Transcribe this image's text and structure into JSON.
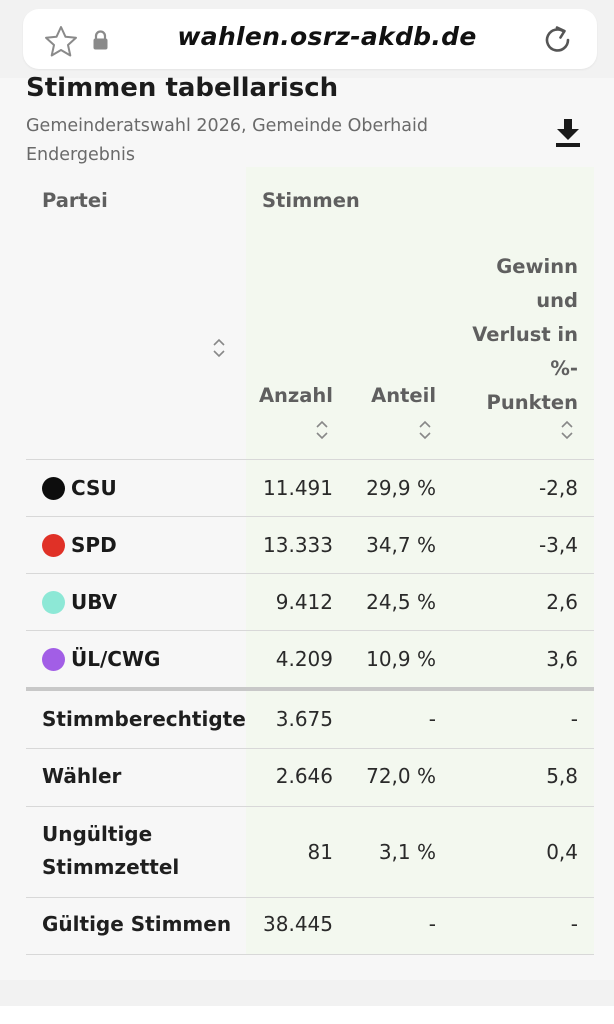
{
  "browser": {
    "url": "wahlen.osrz-akdb.de"
  },
  "page": {
    "title": "Stimmen tabellarisch",
    "subtitle_line1": "Gemeinderatswahl 2026, Gemeinde Oberhaid",
    "subtitle_line2": "Endergebnis"
  },
  "table": {
    "headers": {
      "partei": "Partei",
      "stimmen": "Stimmen",
      "anzahl": "Anzahl",
      "anteil": "Anteil",
      "gewinn_lines": [
        "Gewinn",
        "und",
        "Verlust in",
        "%-",
        "Punkten"
      ]
    },
    "parties": [
      {
        "name": "CSU",
        "color": "#0d0d0d",
        "anzahl": "11.491",
        "anteil": "29,9 %",
        "diff": "-2,8"
      },
      {
        "name": "SPD",
        "color": "#e03127",
        "anzahl": "13.333",
        "anteil": "34,7 %",
        "diff": "-3,4"
      },
      {
        "name": "UBV",
        "color": "#8de8d6",
        "anzahl": "9.412",
        "anteil": "24,5 %",
        "diff": "2,6"
      },
      {
        "name": "ÜL/CWG",
        "color": "#a25ee6",
        "anzahl": "4.209",
        "anteil": "10,9 %",
        "diff": "3,6"
      }
    ],
    "summary": [
      {
        "label": "Stimmberechtigte",
        "anzahl": "3.675",
        "anteil": "-",
        "diff": "-"
      },
      {
        "label": "Wähler",
        "anzahl": "2.646",
        "anteil": "72,0 %",
        "diff": "5,8"
      },
      {
        "label_line1": "Ungültige",
        "label_line2": "Stimmzettel",
        "anzahl": "81",
        "anteil": "3,1 %",
        "diff": "0,4"
      },
      {
        "label": "Gültige Stimmen",
        "anzahl": "38.445",
        "anteil": "-",
        "diff": "-"
      }
    ]
  }
}
